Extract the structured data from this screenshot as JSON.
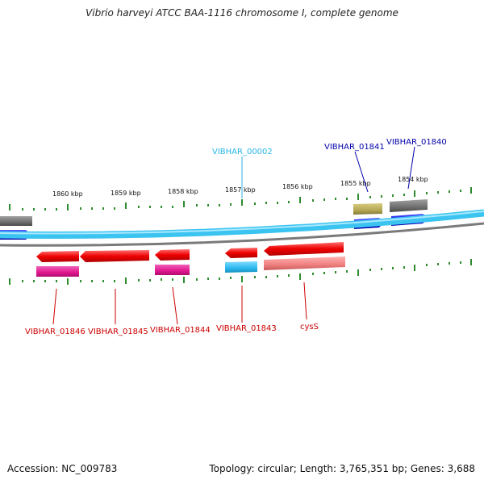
{
  "title": "Vibrio harveyi ATCC BAA-1116 chromosome I, complete genome",
  "footer": {
    "accession": "Accession: NC_009783",
    "summary": "Topology: circular; Length: 3,765,351 bp; Genes: 3,688"
  },
  "ticks": [
    "1860 kbp",
    "1859 kbp",
    "1858 kbp",
    "1857 kbp",
    "1856 kbp",
    "1855 kbp",
    "1854 kbp"
  ],
  "genes": [
    {
      "label": "VIBHAR_00002",
      "color": "#29b6e6"
    },
    {
      "label": "VIBHAR_01841",
      "color": "#0000aa"
    },
    {
      "label": "VIBHAR_01840",
      "color": "#0000aa"
    },
    {
      "label": "VIBHAR_01846",
      "color": "#cc0000"
    },
    {
      "label": "VIBHAR_01845",
      "color": "#cc0000"
    },
    {
      "label": "VIBHAR_01844",
      "color": "#cc0000"
    },
    {
      "label": "VIBHAR_01843",
      "color": "#cc0000"
    },
    {
      "label": "cysS",
      "color": "#cc0000"
    }
  ],
  "colors": {
    "backbone_blue": "#3cc4f0",
    "backbone_gray": "#7a7a7a",
    "forward_cds": "#0000ee",
    "reverse_cds": "#ee0000",
    "pink_cds": "#e0168e",
    "light_blue_cds": "#2bb8ef",
    "salmon_cds": "#f08080",
    "olive_cds": "#b5a855",
    "gray_cds": "#6f6f6f",
    "tick_green": "#2e8b2e"
  }
}
